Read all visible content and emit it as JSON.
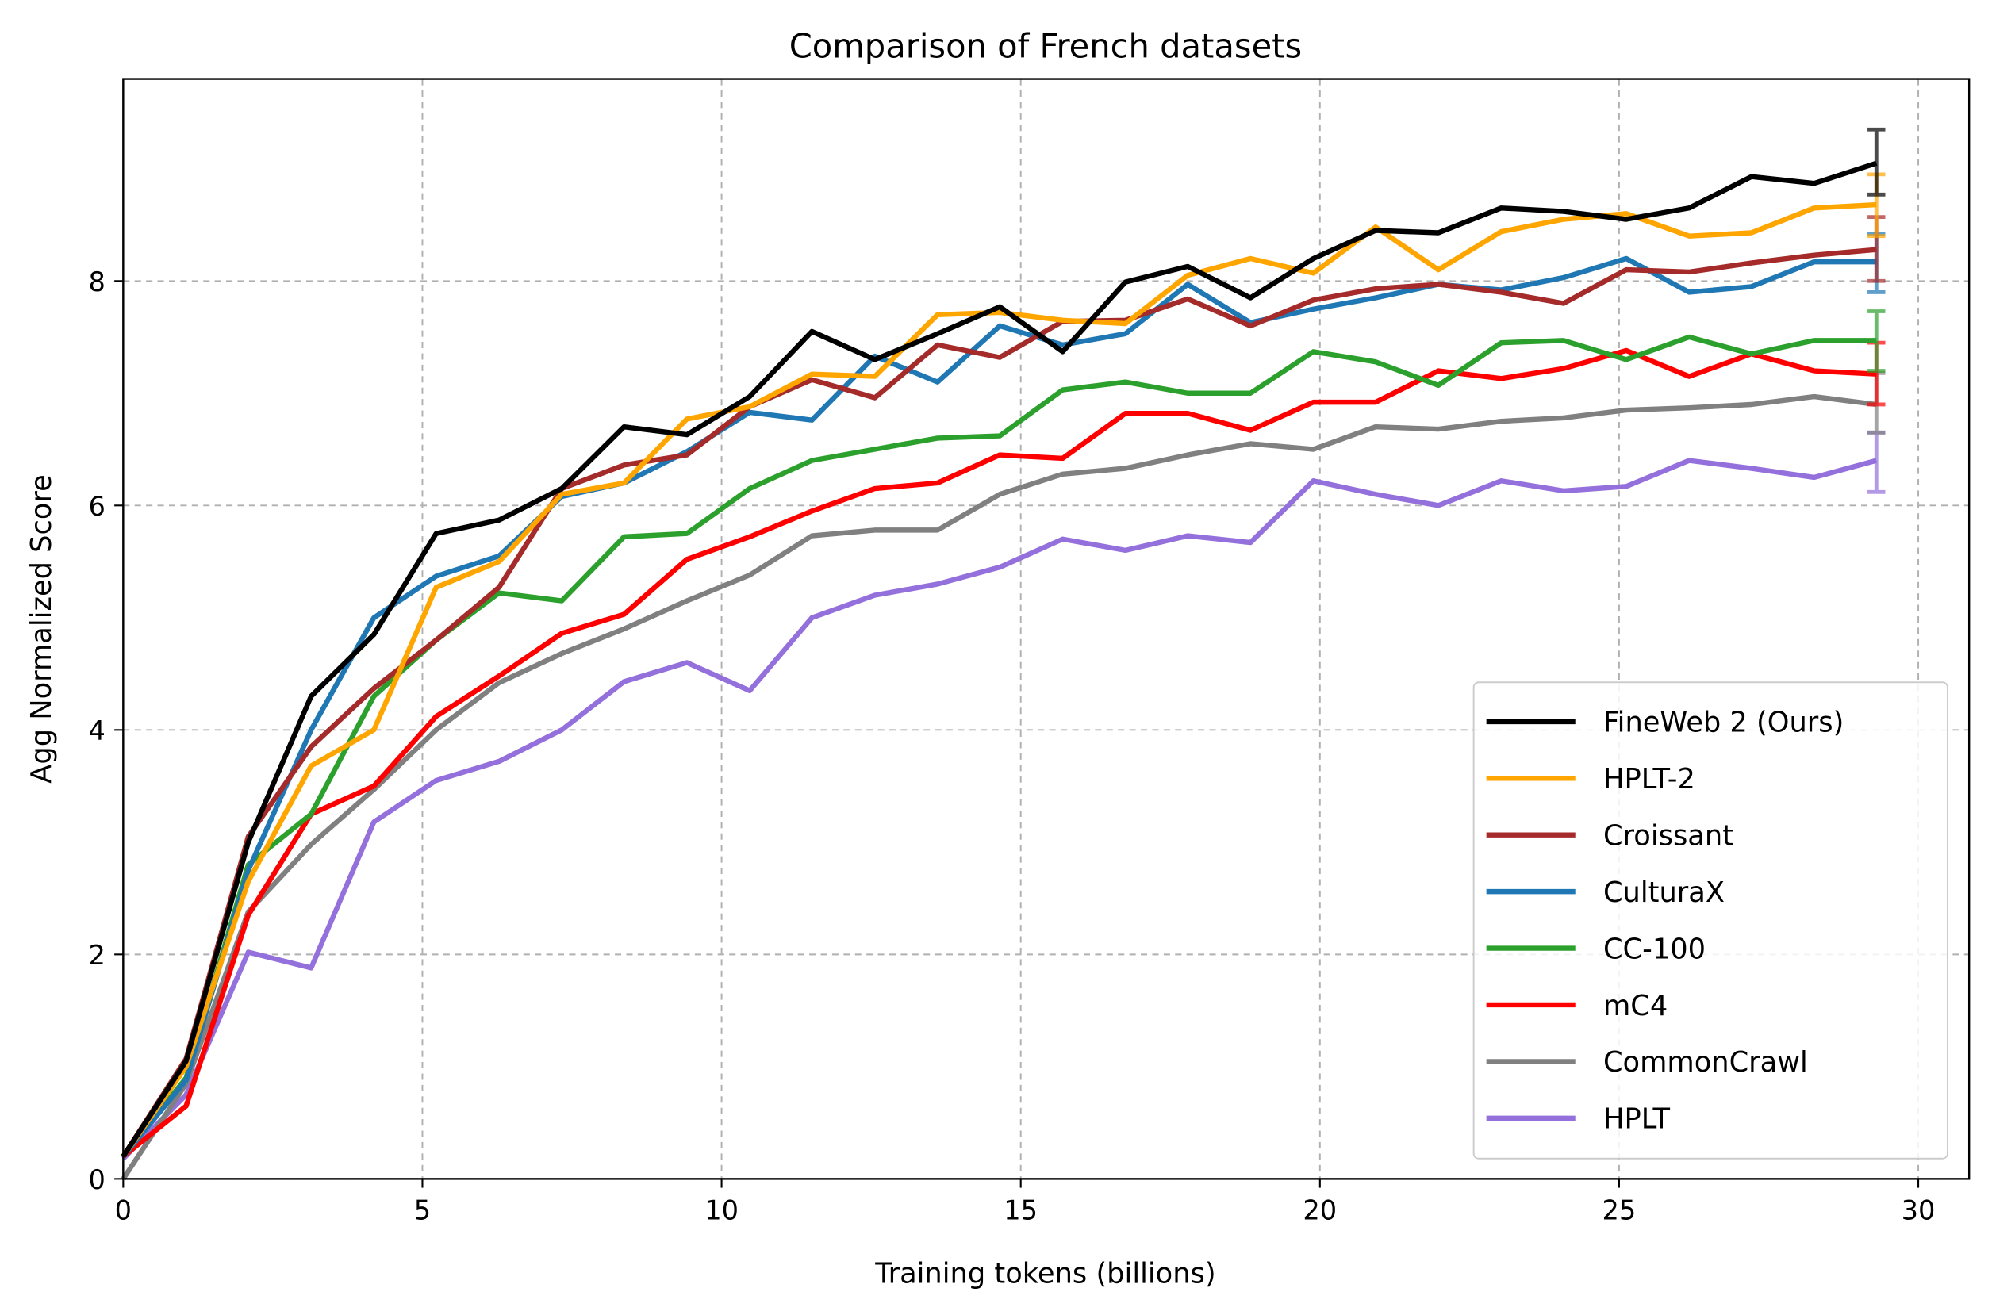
{
  "chart_data": {
    "type": "line",
    "title": "Comparison of French datasets",
    "xlabel": "Training tokens (billions)",
    "ylabel": "Agg Normalized Score",
    "xlim": [
      0,
      30.85
    ],
    "ylim": [
      0,
      9.8
    ],
    "xticks": [
      0,
      5,
      10,
      15,
      20,
      25,
      30
    ],
    "yticks": [
      0,
      2,
      4,
      6,
      8
    ],
    "grid": true,
    "legend_position": "bottom-right",
    "x": [
      0,
      1.05,
      2.09,
      3.14,
      4.19,
      5.23,
      6.28,
      7.33,
      8.37,
      9.42,
      10.47,
      11.51,
      12.56,
      13.61,
      14.65,
      15.7,
      16.75,
      17.79,
      18.84,
      19.89,
      20.93,
      21.98,
      23.03,
      24.07,
      25.12,
      26.17,
      27.21,
      28.26,
      29.3
    ],
    "series": [
      {
        "name": "FineWeb 2 (Ours)",
        "color": "#000000",
        "error": [
          8.77,
          9.35
        ],
        "values": [
          0.2,
          1.05,
          3.0,
          4.3,
          4.85,
          5.75,
          5.87,
          6.15,
          6.7,
          6.63,
          6.97,
          7.55,
          7.3,
          7.53,
          7.77,
          7.37,
          7.99,
          8.13,
          7.85,
          8.2,
          8.45,
          8.43,
          8.65,
          8.62,
          8.55,
          8.65,
          8.93,
          8.87,
          9.05
        ]
      },
      {
        "name": "HPLT-2",
        "color": "#ffa500",
        "error": [
          8.4,
          8.95
        ],
        "values": [
          0.2,
          1.0,
          2.65,
          3.68,
          4.0,
          5.27,
          5.5,
          6.1,
          6.2,
          6.77,
          6.88,
          7.17,
          7.15,
          7.7,
          7.72,
          7.65,
          7.62,
          8.05,
          8.2,
          8.07,
          8.48,
          8.1,
          8.44,
          8.55,
          8.6,
          8.4,
          8.43,
          8.65,
          8.68
        ]
      },
      {
        "name": "Croissant",
        "color": "#a52a2a",
        "error": [
          8.0,
          8.57
        ],
        "values": [
          0.2,
          1.07,
          3.05,
          3.85,
          4.37,
          4.8,
          5.27,
          6.15,
          6.36,
          6.45,
          6.88,
          7.12,
          6.96,
          7.43,
          7.32,
          7.64,
          7.65,
          7.84,
          7.6,
          7.83,
          7.93,
          7.97,
          7.9,
          7.8,
          8.1,
          8.08,
          8.16,
          8.23,
          8.28
        ]
      },
      {
        "name": "CulturaX",
        "color": "#1f77b4",
        "error": [
          7.9,
          8.42
        ],
        "values": [
          0.2,
          0.88,
          2.75,
          4.0,
          5.0,
          5.37,
          5.55,
          6.08,
          6.2,
          6.48,
          6.83,
          6.76,
          7.33,
          7.1,
          7.6,
          7.43,
          7.53,
          7.97,
          7.63,
          7.75,
          7.85,
          7.97,
          7.92,
          8.03,
          8.2,
          7.9,
          7.95,
          8.17,
          8.17
        ]
      },
      {
        "name": "CC-100",
        "color": "#2ca02c",
        "error": [
          7.2,
          7.73
        ],
        "values": [
          0.2,
          0.9,
          2.8,
          3.25,
          4.3,
          4.8,
          5.22,
          5.15,
          5.72,
          5.75,
          6.15,
          6.4,
          6.5,
          6.6,
          6.62,
          7.03,
          7.1,
          7.0,
          7.0,
          7.37,
          7.28,
          7.07,
          7.45,
          7.47,
          7.3,
          7.5,
          7.35,
          7.47,
          7.47
        ]
      },
      {
        "name": "mC4",
        "color": "#ff0000",
        "error": [
          6.9,
          7.45
        ],
        "values": [
          0.2,
          0.65,
          2.35,
          3.25,
          3.5,
          4.12,
          4.48,
          4.86,
          5.03,
          5.52,
          5.72,
          5.95,
          6.15,
          6.2,
          6.45,
          6.42,
          6.82,
          6.82,
          6.67,
          6.92,
          6.92,
          7.2,
          7.13,
          7.22,
          7.38,
          7.15,
          7.35,
          7.2,
          7.17
        ]
      },
      {
        "name": "CommonCrawl",
        "color": "#808080",
        "error": [
          6.65,
          7.18
        ],
        "values": [
          0.0,
          0.85,
          2.38,
          2.98,
          3.47,
          4.0,
          4.42,
          4.68,
          4.9,
          5.15,
          5.38,
          5.73,
          5.78,
          5.78,
          6.1,
          6.28,
          6.33,
          6.45,
          6.55,
          6.5,
          6.7,
          6.68,
          6.75,
          6.78,
          6.85,
          6.87,
          6.9,
          6.97,
          6.9
        ]
      },
      {
        "name": "HPLT",
        "color": "#9370db",
        "error": [
          6.12,
          6.65
        ],
        "values": [
          0.18,
          0.75,
          2.02,
          1.88,
          3.18,
          3.55,
          3.72,
          4.0,
          4.43,
          4.6,
          4.35,
          5.0,
          5.2,
          5.3,
          5.45,
          5.7,
          5.6,
          5.73,
          5.67,
          6.22,
          6.1,
          6.0,
          6.22,
          6.13,
          6.17,
          6.4,
          6.33,
          6.25,
          6.4
        ]
      }
    ]
  }
}
